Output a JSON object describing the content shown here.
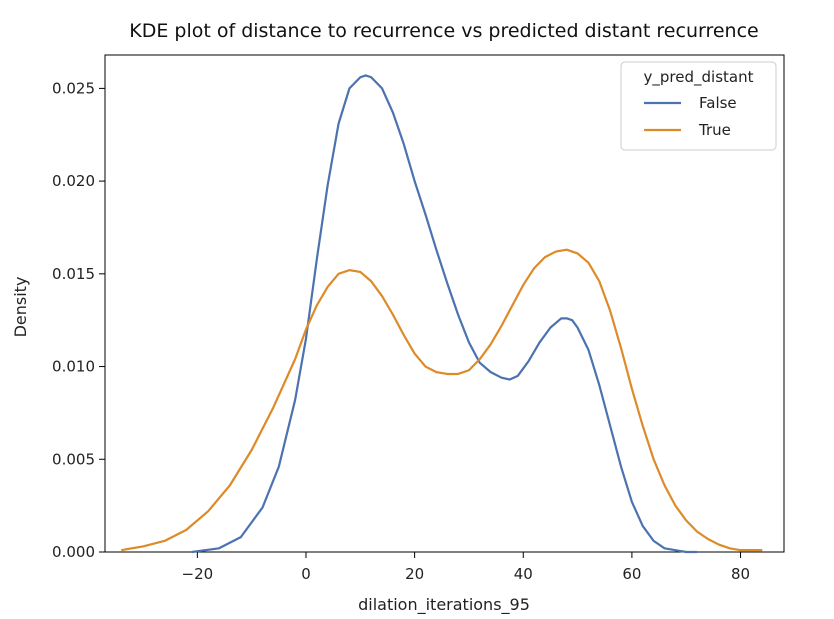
{
  "chart_data": {
    "type": "line",
    "title": "KDE plot of distance to recurrence vs predicted distant recurrence",
    "xlabel": "dilation_iterations_95",
    "ylabel": "Density",
    "xlim": [
      -37,
      88
    ],
    "ylim": [
      0,
      0.0268
    ],
    "xticks": [
      -20,
      0,
      20,
      40,
      60,
      80
    ],
    "xtick_labels": [
      "−20",
      "0",
      "20",
      "40",
      "60",
      "80"
    ],
    "yticks": [
      0,
      0.005,
      0.01,
      0.015,
      0.02,
      0.025
    ],
    "ytick_labels": [
      "0.000",
      "0.005",
      "0.010",
      "0.015",
      "0.020",
      "0.025"
    ],
    "grid": false,
    "legend": {
      "title": "y_pred_distant",
      "position": "top-right"
    },
    "series": [
      {
        "name": "False",
        "color": "#4c72b0",
        "x": [
          -21,
          -16,
          -12,
          -8,
          -5,
          -2,
          0,
          2,
          4,
          6,
          8,
          10,
          11,
          12,
          14,
          16,
          18,
          20,
          22,
          24,
          26,
          28,
          30,
          32,
          34,
          36,
          37.5,
          39,
          41,
          43,
          45,
          47,
          48,
          49,
          50,
          52,
          54,
          56,
          58,
          60,
          62,
          64,
          66,
          68,
          70,
          72
        ],
        "y": [
          0.0,
          0.0002,
          0.0008,
          0.0024,
          0.0046,
          0.0082,
          0.0115,
          0.0158,
          0.0198,
          0.0231,
          0.025,
          0.0256,
          0.0257,
          0.0256,
          0.025,
          0.0237,
          0.022,
          0.02,
          0.0182,
          0.0163,
          0.0145,
          0.0128,
          0.0113,
          0.0102,
          0.0097,
          0.0094,
          0.0093,
          0.0095,
          0.0103,
          0.0113,
          0.0121,
          0.0126,
          0.0126,
          0.0125,
          0.0121,
          0.0109,
          0.009,
          0.0068,
          0.0046,
          0.0027,
          0.0014,
          0.0006,
          0.0002,
          0.0001,
          0.0,
          0.0
        ]
      },
      {
        "name": "True",
        "color": "#dd8a28",
        "x": [
          -34,
          -30,
          -26,
          -22,
          -18,
          -14,
          -10,
          -6,
          -2,
          0,
          2,
          4,
          6,
          8,
          10,
          12,
          14,
          16,
          18,
          20,
          22,
          24,
          26,
          28,
          30,
          32,
          34,
          36,
          38,
          40,
          42,
          44,
          46,
          48,
          50,
          52,
          54,
          56,
          58,
          60,
          62,
          64,
          66,
          68,
          70,
          72,
          74,
          76,
          78,
          80,
          82,
          84
        ],
        "y": [
          0.0001,
          0.0003,
          0.0006,
          0.0012,
          0.0022,
          0.0036,
          0.0055,
          0.0078,
          0.0104,
          0.012,
          0.0133,
          0.0143,
          0.015,
          0.0152,
          0.0151,
          0.0146,
          0.0138,
          0.0128,
          0.0117,
          0.0107,
          0.01,
          0.0097,
          0.0096,
          0.0096,
          0.0098,
          0.0104,
          0.0112,
          0.0122,
          0.0133,
          0.0144,
          0.0153,
          0.0159,
          0.0162,
          0.0163,
          0.0161,
          0.0156,
          0.0146,
          0.013,
          0.011,
          0.0088,
          0.0068,
          0.005,
          0.0036,
          0.0025,
          0.0017,
          0.0011,
          0.0007,
          0.0004,
          0.0002,
          0.0001,
          0.0001,
          0.0001
        ]
      }
    ]
  }
}
